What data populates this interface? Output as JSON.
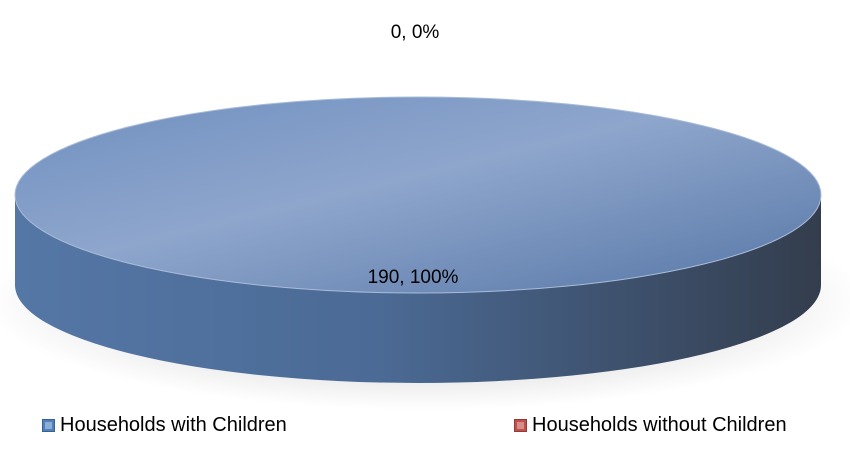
{
  "chart_data": {
    "type": "pie",
    "style": "3d",
    "title": "",
    "categories": [
      "Households with Children",
      "Households without Children"
    ],
    "values": [
      190,
      0
    ],
    "data_labels": [
      "190, 100%",
      "0, 0%"
    ],
    "colors": [
      "#4f81bd",
      "#c0504d"
    ],
    "legend_position": "bottom"
  },
  "legend": {
    "items": [
      {
        "label": "Households with Children",
        "color": "#4f81bd"
      },
      {
        "label": "Households without Children",
        "color": "#c0504d"
      }
    ]
  }
}
